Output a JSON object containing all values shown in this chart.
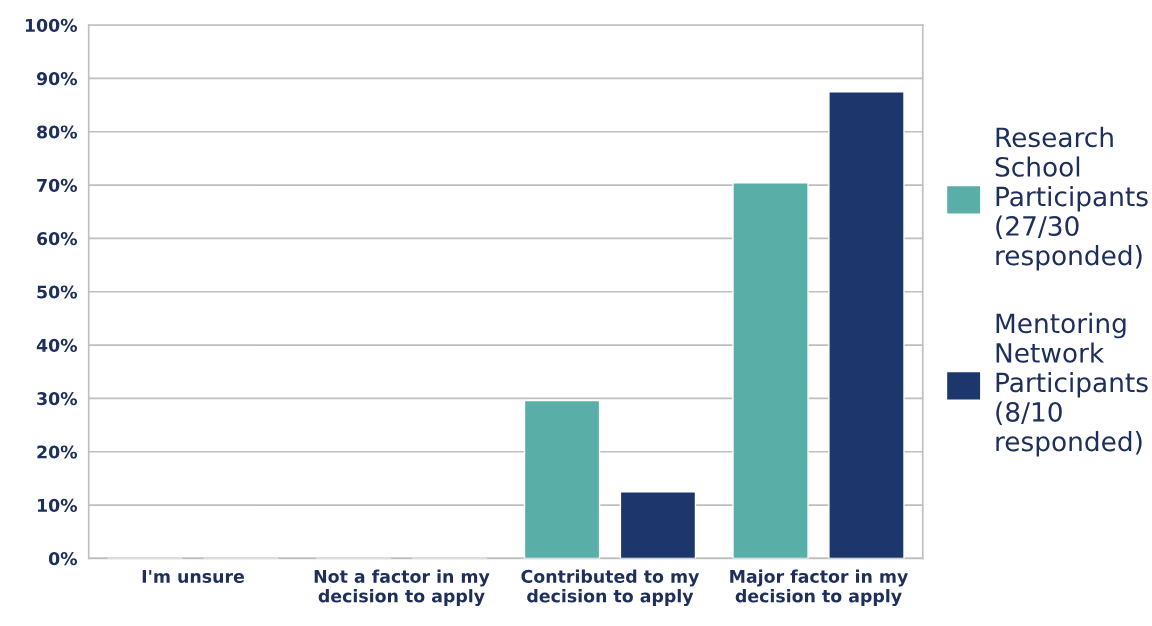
{
  "chart_data": {
    "type": "bar",
    "categories": [
      "I'm unsure",
      "Not a factor in my\ndecision to apply",
      "Contributed to my\ndecision to apply",
      "Major factor in my\ndecision to apply"
    ],
    "series": [
      {
        "name": "Research\nSchool\nParticipants\n(27/30\nresponded)",
        "color": "#59afa7",
        "values": [
          0,
          0,
          29.6,
          70.4
        ]
      },
      {
        "name": "Mentoring\nNetwork\nParticipants\n(8/10\nresponded)",
        "color": "#1d366b",
        "values": [
          0,
          0,
          12.5,
          87.5
        ]
      }
    ],
    "ylim": [
      0,
      100
    ],
    "yticks": [
      {
        "value": 0,
        "label": "0%"
      },
      {
        "value": 10,
        "label": "10%"
      },
      {
        "value": 20,
        "label": "20%"
      },
      {
        "value": 30,
        "label": "30%"
      },
      {
        "value": 40,
        "label": "40%"
      },
      {
        "value": 50,
        "label": "50%"
      },
      {
        "value": 60,
        "label": "60%"
      },
      {
        "value": 70,
        "label": "70%"
      },
      {
        "value": 80,
        "label": "80%"
      },
      {
        "value": 90,
        "label": "90%"
      },
      {
        "value": 100,
        "label": "100%"
      }
    ],
    "grid": "y",
    "legend": "right"
  }
}
